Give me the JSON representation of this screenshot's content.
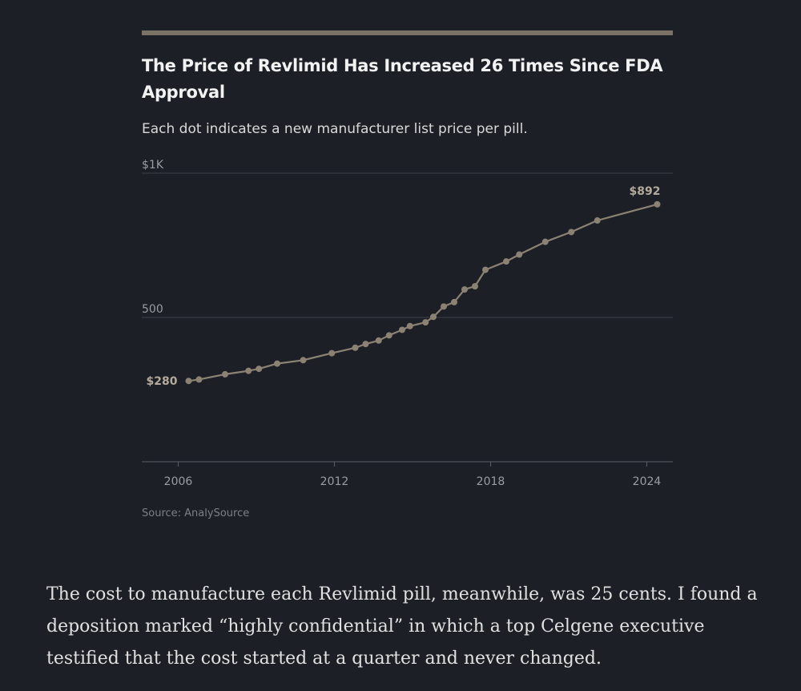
{
  "chart_data": {
    "type": "line",
    "title": "The Price of Revlimid Has Increased 26 Times Since FDA Approval",
    "subtitle": "Each dot indicates a new manufacturer list price per pill.",
    "source": "Source: AnalySource",
    "xlabel": "",
    "ylabel": "",
    "xlim": [
      2004.6,
      2025.0
    ],
    "ylim": [
      0,
      1000
    ],
    "x_ticks": [
      2006,
      2012,
      2018,
      2024
    ],
    "x_tick_labels": [
      "2006",
      "2012",
      "2018",
      "2024"
    ],
    "y_ticks": [
      500,
      1000
    ],
    "y_tick_labels": [
      "500",
      "$1K"
    ],
    "grid": true,
    "series": [
      {
        "name": "List price per pill",
        "color": "#8c8273",
        "x": [
          2006.4,
          2006.8,
          2007.8,
          2008.7,
          2009.1,
          2009.8,
          2010.8,
          2011.9,
          2012.8,
          2013.2,
          2013.7,
          2014.1,
          2014.6,
          2014.9,
          2015.5,
          2015.8,
          2016.2,
          2016.6,
          2017.0,
          2017.4,
          2017.8,
          2018.6,
          2019.1,
          2020.1,
          2021.1,
          2022.1,
          2024.4
        ],
        "values": [
          280,
          285,
          303,
          315,
          322,
          340,
          352,
          376,
          395,
          408,
          420,
          438,
          457,
          470,
          483,
          502,
          538,
          553,
          597,
          608,
          665,
          694,
          718,
          762,
          796,
          836,
          892
        ]
      }
    ],
    "annotations": [
      {
        "label": "$280",
        "x": 2006.4,
        "y": 280,
        "anchor": "left"
      },
      {
        "label": "$892",
        "x": 2024.4,
        "y": 892,
        "anchor": "above"
      }
    ]
  },
  "body_text": "The cost to manufacture each Revlimid pill, meanwhile, was 25 cents. I found a deposition marked “highly confidential” in which a top Celgene executive testified that the cost started at a quarter and never changed."
}
